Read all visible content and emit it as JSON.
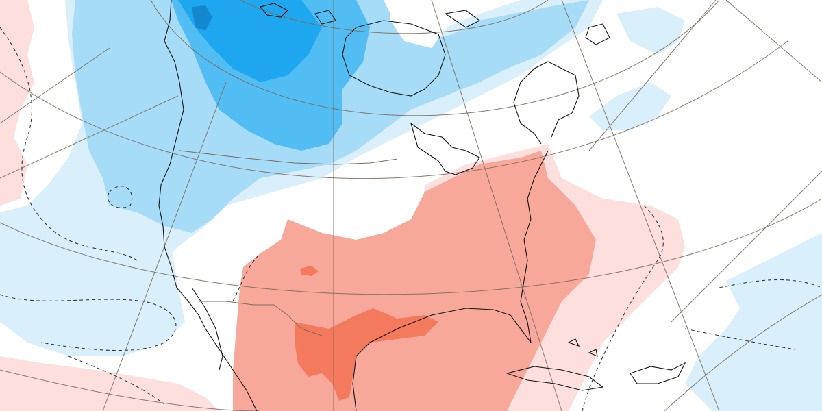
{
  "map": {
    "colors": {
      "warm_light": "#fde0dd",
      "warm_medium": "#f8a89a",
      "warm_strong": "#f47a5e",
      "warm_intense": "#ef4a2e",
      "cool_light": "#d9effc",
      "cool_medium": "#a6dcf7",
      "cool_strong": "#52bdf2",
      "cool_intense": "#1ea7ef",
      "cool_deep": "#1488cf",
      "neutral": "#ffffff",
      "coastline": "#111111",
      "graticule": "#7a6a5e"
    },
    "icons": {
      "coastline": "coastline-outline",
      "graticule": "lat-lon-grid",
      "contour": "dashed-contour"
    }
  }
}
